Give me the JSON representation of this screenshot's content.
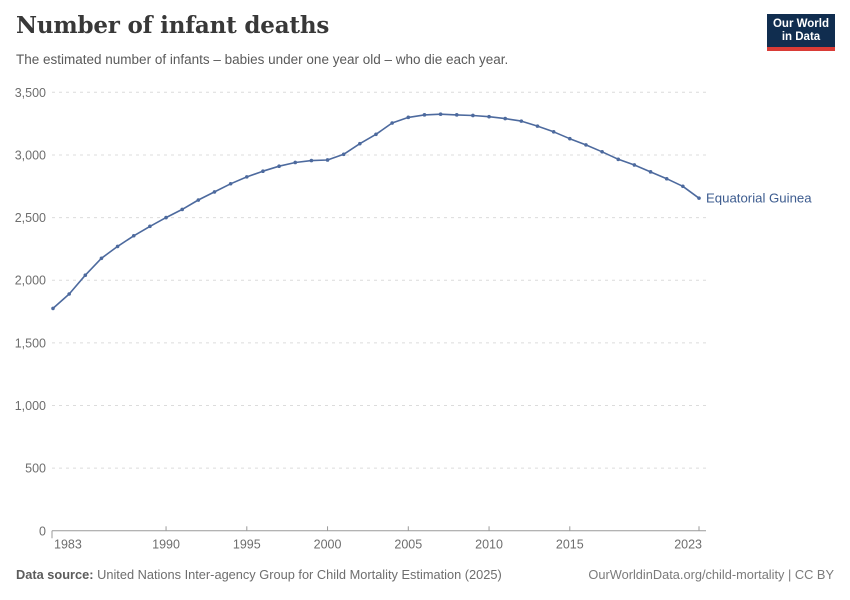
{
  "header": {
    "title": "Number of infant deaths",
    "subtitle": "The estimated number of infants – babies under one year old – who die each year.",
    "logo": {
      "line1": "Our World",
      "line2": "in Data"
    }
  },
  "chart_data": {
    "type": "line",
    "title": "Number of infant deaths",
    "xlabel": "",
    "ylabel": "",
    "ylim": [
      0,
      3500
    ],
    "grid": "horizontal-dashed",
    "legend_position": "end-of-line-label",
    "y_ticks": [
      0,
      500,
      1000,
      1500,
      2000,
      2500,
      3000,
      3500
    ],
    "y_tick_labels": [
      "0",
      "500",
      "1,000",
      "1,500",
      "2,000",
      "2,500",
      "3,000",
      "3,500"
    ],
    "x_ticks": [
      1983,
      1990,
      1995,
      2000,
      2005,
      2010,
      2015,
      2023
    ],
    "series": [
      {
        "name": "Equatorial Guinea",
        "color": "#4d6a9e",
        "label_color": "#3d5c8f",
        "x": [
          1983,
          1984,
          1985,
          1986,
          1987,
          1988,
          1989,
          1990,
          1991,
          1992,
          1993,
          1994,
          1995,
          1996,
          1997,
          1998,
          1999,
          2000,
          2001,
          2002,
          2003,
          2004,
          2005,
          2006,
          2007,
          2008,
          2009,
          2010,
          2011,
          2012,
          2013,
          2014,
          2015,
          2016,
          2017,
          2018,
          2019,
          2020,
          2021,
          2022,
          2023
        ],
        "values": [
          1775,
          1890,
          2040,
          2175,
          2270,
          2355,
          2430,
          2500,
          2565,
          2640,
          2705,
          2770,
          2825,
          2870,
          2910,
          2940,
          2955,
          2960,
          3005,
          3090,
          3165,
          3255,
          3300,
          3320,
          3325,
          3320,
          3315,
          3305,
          3290,
          3270,
          3230,
          3185,
          3130,
          3080,
          3025,
          2965,
          2920,
          2865,
          2810,
          2750,
          2655
        ]
      }
    ]
  },
  "footer": {
    "source_label": "Data source:",
    "source_text": " United Nations Inter-agency Group for Child Mortality Estimation (2025)",
    "link_text": "OurWorldinData.org/child-mortality | CC BY"
  },
  "colors": {
    "gridline": "#dcdcdc",
    "axis": "#9a9a9a",
    "tick_label": "#6e6e6e"
  }
}
